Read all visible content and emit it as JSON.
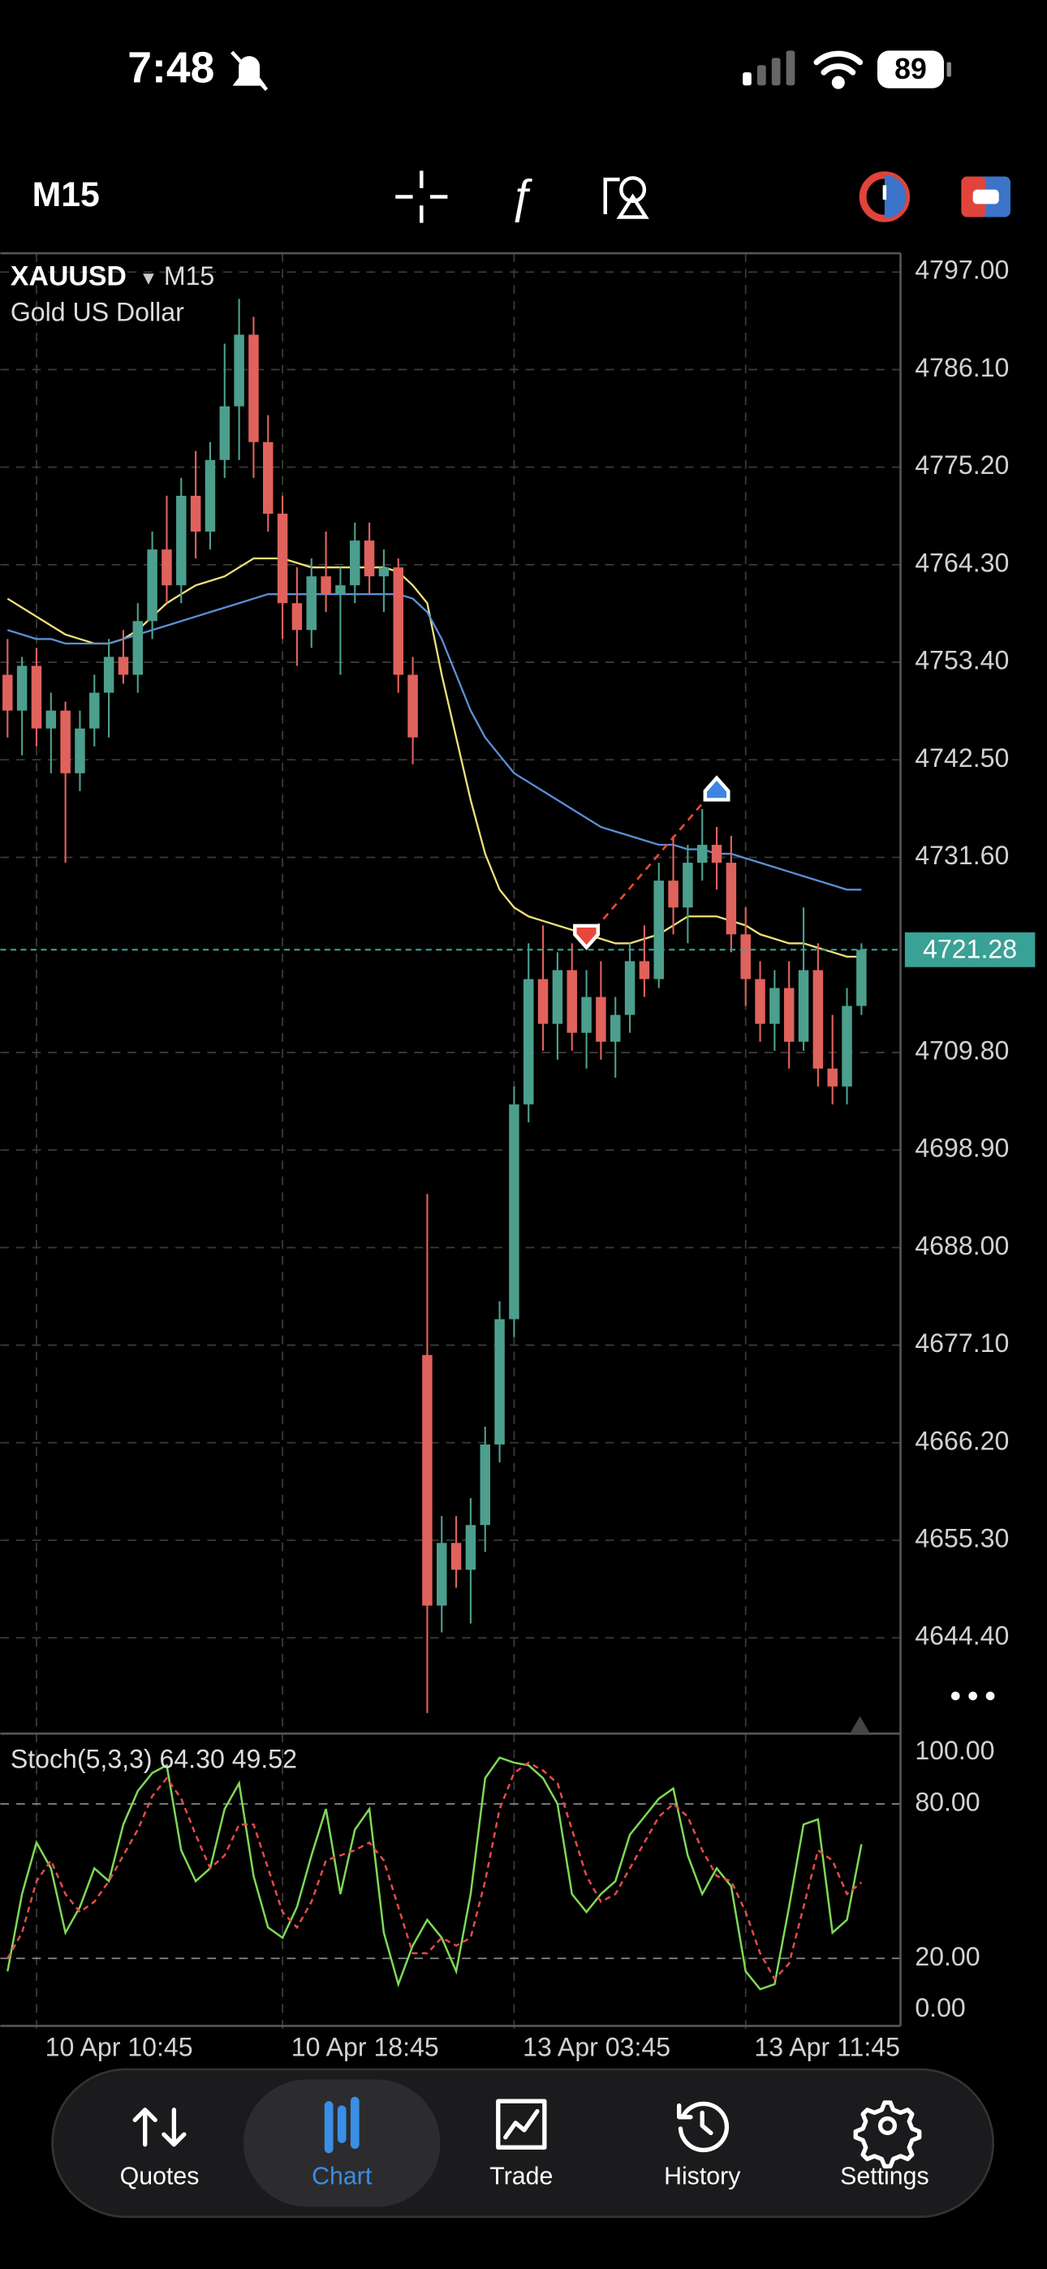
{
  "status_bar": {
    "time": "7:48",
    "battery": "89"
  },
  "toolbar": {
    "timeframe": "M15"
  },
  "chart_data": {
    "type": "candlestick",
    "symbol": "XAUUSD",
    "timeframe": "M15",
    "description": "Gold US Dollar",
    "categories": [
      null,
      null,
      "10 Apr 10:45",
      null,
      null,
      null,
      null,
      null,
      null,
      null,
      null,
      null,
      null,
      null,
      null,
      null,
      null,
      null,
      null,
      "10 Apr 18:45",
      null,
      null,
      null,
      null,
      null,
      null,
      null,
      null,
      null,
      null,
      null,
      null,
      null,
      null,
      null,
      "13 Apr 03:45",
      null,
      null,
      null,
      null,
      null,
      null,
      null,
      null,
      null,
      null,
      null,
      null,
      null,
      null,
      null,
      "13 Apr 11:45",
      null,
      null,
      null,
      null,
      null,
      null,
      null,
      null
    ],
    "open": [
      4752,
      4748,
      4753,
      4746,
      4748,
      4741,
      4746,
      4750,
      4754,
      4752,
      4758,
      4766,
      4762,
      4772,
      4768,
      4776,
      4782,
      4790,
      4778,
      4770,
      4760,
      4757,
      4763,
      4761,
      4762,
      4767,
      4763,
      4764,
      4752,
      4676,
      4648,
      4655,
      4652,
      4657,
      4666,
      4680,
      4704,
      4718,
      4713,
      4719,
      4712,
      4716,
      4711,
      4714,
      4720,
      4718,
      4729,
      4726,
      4731,
      4733,
      4731,
      4723,
      4718,
      4713,
      4717,
      4711,
      4719,
      4708,
      4706,
      4715
    ],
    "high": [
      4756,
      4754,
      4755,
      4750,
      4749,
      4748,
      4752,
      4756,
      4757,
      4760,
      4768,
      4772,
      4774,
      4777,
      4778,
      4789,
      4794,
      4792,
      4781,
      4772,
      4764,
      4765,
      4768,
      4764,
      4769,
      4769,
      4766,
      4765,
      4754,
      4694,
      4658,
      4658,
      4660,
      4668,
      4682,
      4706,
      4722,
      4724,
      4721,
      4722,
      4719,
      4720,
      4716,
      4722,
      4724,
      4731,
      4734,
      4733,
      4737,
      4735,
      4734,
      4726,
      4720,
      4719,
      4720,
      4726,
      4722,
      4714,
      4717,
      4722
    ],
    "low": [
      4745,
      4743,
      4744,
      4741,
      4731,
      4739,
      4744,
      4745,
      4751,
      4750,
      4756,
      4760,
      4760,
      4765,
      4766,
      4774,
      4776,
      4774,
      4768,
      4756,
      4753,
      4755,
      4759,
      4752,
      4760,
      4761,
      4759,
      4750,
      4742,
      4636,
      4645,
      4650,
      4646,
      4654,
      4664,
      4678,
      4702,
      4710,
      4709,
      4710,
      4708,
      4709,
      4707,
      4712,
      4716,
      4717,
      4723,
      4722,
      4729,
      4728,
      4721,
      4715,
      4711,
      4710,
      4708,
      4710,
      4706,
      4704,
      4704,
      4714
    ],
    "close": [
      4748,
      4753,
      4746,
      4748,
      4741,
      4746,
      4750,
      4754,
      4752,
      4758,
      4766,
      4762,
      4772,
      4768,
      4776,
      4782,
      4790,
      4778,
      4770,
      4760,
      4757,
      4763,
      4761,
      4762,
      4767,
      4763,
      4764,
      4752,
      4745,
      4648,
      4655,
      4652,
      4657,
      4666,
      4680,
      4704,
      4718,
      4713,
      4719,
      4712,
      4716,
      4711,
      4714,
      4720,
      4718,
      4729,
      4726,
      4731,
      4733,
      4731,
      4723,
      4718,
      4713,
      4717,
      4711,
      4719,
      4708,
      4706,
      4715,
      4721.28
    ],
    "up_color": "#4c9f8d",
    "down_color": "#e0625c",
    "overlays": [
      {
        "color": "#efe07a",
        "values": [
          4760.5,
          4759.5,
          4758.5,
          4757.5,
          4756.5,
          4756,
          4755.5,
          4755.5,
          4756,
          4757,
          4758.5,
          4760,
          4761,
          4762,
          4762.5,
          4763,
          4764,
          4765,
          4765,
          4765,
          4764.5,
          4764,
          4764,
          4764,
          4764,
          4764,
          4764,
          4763.5,
          4762,
          4760,
          4752,
          4745,
          4738,
          4732,
          4728,
          4726,
          4725,
          4724.5,
          4724,
          4723.5,
          4723,
          4722.5,
          4722,
          4722,
          4722.5,
          4723,
          4724,
          4725,
          4725,
          4725,
          4724.5,
          4724,
          4723,
          4722.5,
          4722,
          4722,
          4721.5,
          4721,
          4720.5,
          4720.5
        ]
      },
      {
        "color": "#5b8fd4",
        "values": [
          4757,
          4756.5,
          4756,
          4756,
          4755.5,
          4755.5,
          4755.5,
          4755.5,
          4756,
          4756.5,
          4757,
          4757.5,
          4758,
          4758.5,
          4759,
          4759.5,
          4760,
          4760.5,
          4761,
          4761,
          4761,
          4761,
          4761,
          4761,
          4761,
          4761,
          4761,
          4761,
          4760.5,
          4759,
          4756,
          4752,
          4748,
          4745,
          4743,
          4741,
          4740,
          4739,
          4738,
          4737,
          4736,
          4735,
          4734.5,
          4734,
          4733.5,
          4733,
          4733,
          4732.5,
          4732.5,
          4732,
          4732,
          4731.5,
          4731,
          4730.5,
          4730,
          4729.5,
          4729,
          4728.5,
          4728,
          4728
        ]
      }
    ],
    "last_price": 4721.28,
    "last_color": "#3aa197",
    "ylim": [
      4633.7,
      4799.1
    ],
    "yticks": [
      {
        "value": 4797,
        "label": "4797.00"
      },
      {
        "value": 4786.1,
        "label": "4786.10"
      },
      {
        "value": 4775.2,
        "label": "4775.20"
      },
      {
        "value": 4764.3,
        "label": "4764.30"
      },
      {
        "value": 4753.4,
        "label": "4753.40"
      },
      {
        "value": 4742.5,
        "label": "4742.50"
      },
      {
        "value": 4731.6,
        "label": "4731.60"
      },
      {
        "value": 4709.8,
        "label": "4709.80"
      },
      {
        "value": 4698.9,
        "label": "4698.90"
      },
      {
        "value": 4688,
        "label": "4688.00"
      },
      {
        "value": 4677.1,
        "label": "4677.10"
      },
      {
        "value": 4666.2,
        "label": "4666.20"
      },
      {
        "value": 4655.3,
        "label": "4655.30"
      },
      {
        "value": 4644.4,
        "label": "4644.40"
      }
    ],
    "grid": true,
    "trades": {
      "x": [
        40,
        49
      ],
      "values": [
        4722.5,
        4739.5
      ],
      "directions": [
        "down",
        "up"
      ],
      "colors": [
        "#e8473b",
        "#3d85e0"
      ]
    },
    "indicator": {
      "title": "Stoch(5,3,3) 64.30 49.52",
      "ylim": [
        -6.2,
        107.3
      ],
      "yticks": [
        {
          "value": 100,
          "label": "100.00"
        },
        {
          "value": 80,
          "label": "80.00"
        },
        {
          "value": 20,
          "label": "20.00"
        },
        {
          "value": 0,
          "label": "0.00"
        }
      ],
      "levels": [
        80,
        20
      ],
      "lines": [
        {
          "color": "#7ed957",
          "dashed": false,
          "values": [
            15,
            45,
            65,
            55,
            30,
            40,
            55,
            50,
            72,
            85,
            92,
            95,
            62,
            50,
            55,
            78,
            88,
            52,
            32,
            28,
            40,
            60,
            78,
            45,
            70,
            78,
            30,
            10,
            25,
            35,
            28,
            15,
            45,
            90,
            98,
            96,
            95,
            90,
            80,
            45,
            38,
            45,
            50,
            68,
            75,
            82,
            86,
            60,
            45,
            55,
            48,
            15,
            8,
            10,
            40,
            72,
            74,
            30,
            35,
            64.3
          ]
        },
        {
          "color": "#e34b4b",
          "dashed": true,
          "values": [
            20,
            30,
            50,
            58,
            45,
            38,
            42,
            50,
            60,
            70,
            83,
            90,
            82,
            68,
            55,
            60,
            72,
            72,
            55,
            38,
            32,
            42,
            58,
            60,
            62,
            65,
            58,
            40,
            22,
            22,
            28,
            25,
            28,
            50,
            78,
            92,
            96,
            93,
            88,
            70,
            52,
            42,
            45,
            55,
            65,
            75,
            80,
            75,
            62,
            52,
            50,
            38,
            22,
            12,
            18,
            40,
            62,
            58,
            45,
            49.52
          ]
        }
      ]
    }
  },
  "tab_bar": {
    "tabs": [
      "Quotes",
      "Chart",
      "Trade",
      "History",
      "Settings"
    ],
    "active": 1
  }
}
